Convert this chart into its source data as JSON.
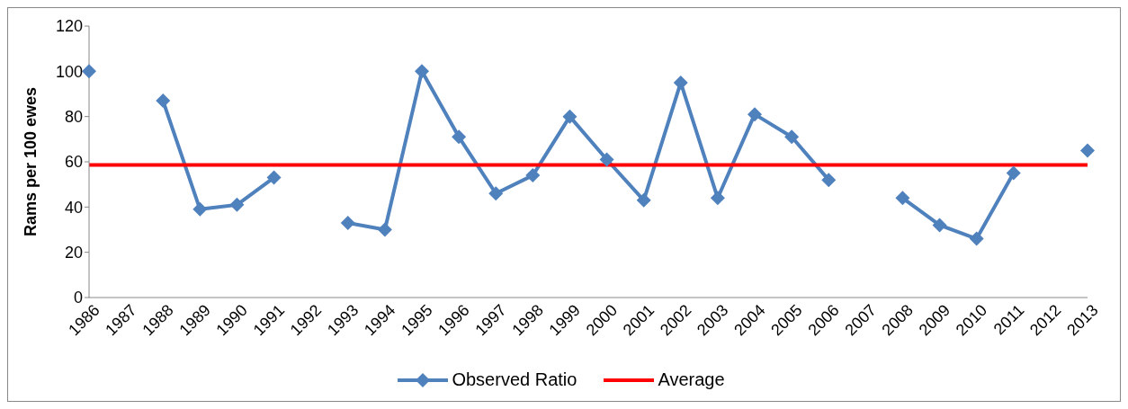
{
  "chart_data": {
    "type": "line",
    "ylabel": "Rams per 100 ewes",
    "categories": [
      "1986",
      "1987",
      "1988",
      "1989",
      "1990",
      "1991",
      "1992",
      "1993",
      "1994",
      "1995",
      "1996",
      "1997",
      "1998",
      "1999",
      "2000",
      "2001",
      "2002",
      "2003",
      "2004",
      "2005",
      "2006",
      "2007",
      "2008",
      "2009",
      "2010",
      "2011",
      "2012",
      "2013"
    ],
    "series": [
      {
        "name": "Observed Ratio",
        "color": "#4f81bd",
        "marker": "diamond",
        "values": [
          100,
          null,
          87,
          39,
          41,
          53,
          null,
          33,
          30,
          100,
          71,
          46,
          54,
          80,
          61,
          43,
          95,
          44,
          81,
          71,
          52,
          null,
          44,
          32,
          26,
          55,
          null,
          65
        ]
      },
      {
        "name": "Average",
        "color": "#ff0000",
        "marker": "none",
        "values": [
          58.6,
          58.6,
          58.6,
          58.6,
          58.6,
          58.6,
          58.6,
          58.6,
          58.6,
          58.6,
          58.6,
          58.6,
          58.6,
          58.6,
          58.6,
          58.6,
          58.6,
          58.6,
          58.6,
          58.6,
          58.6,
          58.6,
          58.6,
          58.6,
          58.6,
          58.6,
          58.6,
          58.6
        ]
      }
    ],
    "ylim": [
      0,
      120
    ],
    "yticks": [
      0,
      20,
      40,
      60,
      80,
      100,
      120
    ],
    "legend": "bottom"
  }
}
